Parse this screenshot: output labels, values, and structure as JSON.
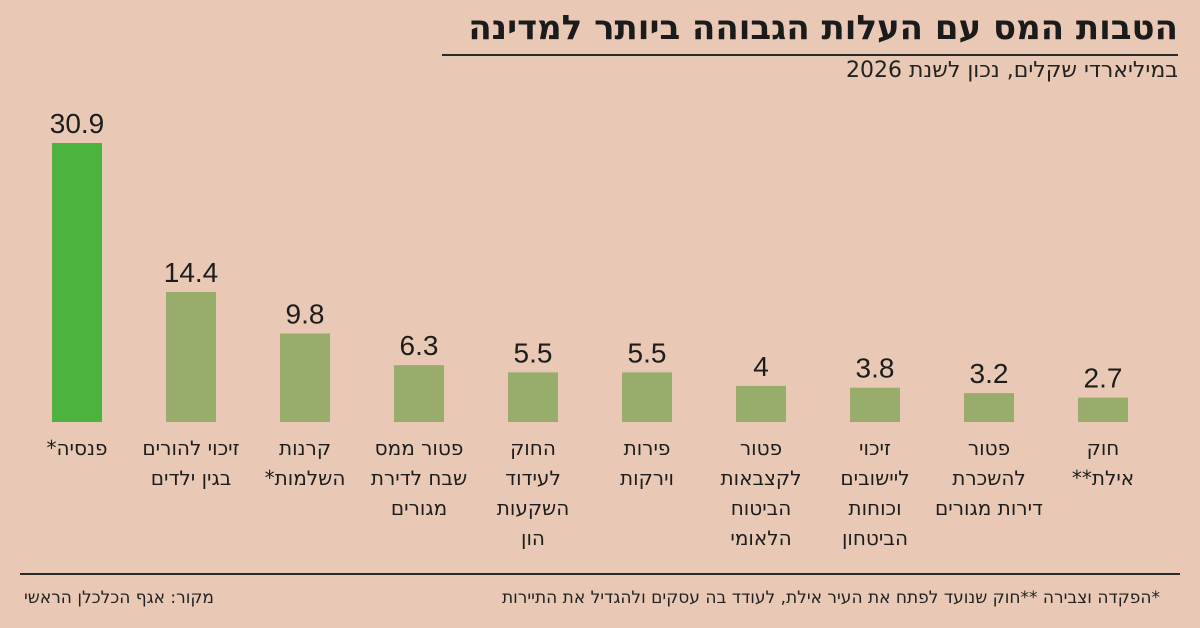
{
  "header": {
    "title": "הטבות המס עם העלות הגבוהה ביותר למדינה",
    "subtitle": "במיליארדי שקלים, נכון לשנת 2026"
  },
  "footer": {
    "source": "מקור: אגף הכלכלן הראשי",
    "footnote": "*הפקדה וצבירה   **חוק שנועד לפתח את העיר אילת, לעודד בה עסקים ולהגדיל את התיירות"
  },
  "colors": {
    "highlight": "#4cb33f",
    "bar": "#98ad6b",
    "background": "#e9c9b5"
  },
  "chart_data": {
    "type": "bar",
    "title": "הטבות המס עם העלות הגבוהה ביותר למדינה",
    "subtitle": "במיליארדי שקלים, נכון לשנת 2026",
    "categories": [
      "פנסיה*",
      "זיכוי להורים בגין ילדים",
      "קרנות השלמות*",
      "פטור ממס שבח לדירת מגורים",
      "החוק לעידוד השקעות הון",
      "פירות וירקות",
      "פטור לקצבאות הביטוח הלאומי",
      "זיכוי ליישובים וכוחות הביטחון",
      "פטור להשכרת דירות מגורים",
      "חוק אילת**"
    ],
    "category_lines": [
      [
        "פנסיה*"
      ],
      [
        "זיכוי להורים",
        "בגין ילדים"
      ],
      [
        "קרנות",
        "השלמות*"
      ],
      [
        "פטור ממס",
        "שבח לדירת",
        "מגורים"
      ],
      [
        "החוק",
        "לעידוד",
        "השקעות",
        "הון"
      ],
      [
        "פירות",
        "וירקות"
      ],
      [
        "פטור",
        "לקצבאות",
        "הביטוח",
        "הלאומי"
      ],
      [
        "זיכוי",
        "ליישובים",
        "וכוחות",
        "הביטחון"
      ],
      [
        "פטור",
        "להשכרת",
        "דירות מגורים"
      ],
      [
        "חוק",
        "אילת**"
      ]
    ],
    "values": [
      30.9,
      14.4,
      9.8,
      6.3,
      5.5,
      5.5,
      4,
      3.8,
      3.2,
      2.7
    ],
    "value_labels": [
      "30.9",
      "14.4",
      "9.8",
      "6.3",
      "5.5",
      "5.5",
      "4",
      "3.8",
      "3.2",
      "2.7"
    ],
    "highlight_index": 0,
    "ylim": [
      0,
      30.9
    ],
    "grid": false,
    "legend": "none"
  }
}
